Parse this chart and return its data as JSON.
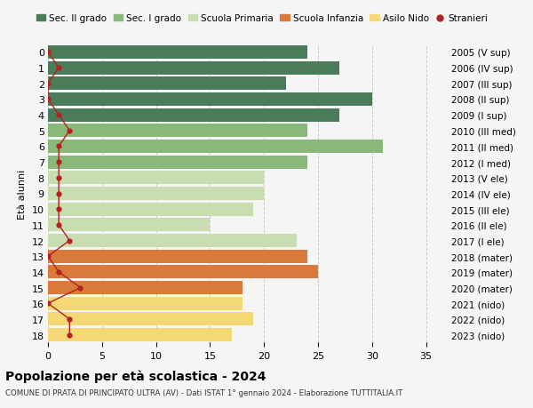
{
  "ages": [
    18,
    17,
    16,
    15,
    14,
    13,
    12,
    11,
    10,
    9,
    8,
    7,
    6,
    5,
    4,
    3,
    2,
    1,
    0
  ],
  "right_labels": [
    "2005 (V sup)",
    "2006 (IV sup)",
    "2007 (III sup)",
    "2008 (II sup)",
    "2009 (I sup)",
    "2010 (III med)",
    "2011 (II med)",
    "2012 (I med)",
    "2013 (V ele)",
    "2014 (IV ele)",
    "2015 (III ele)",
    "2016 (II ele)",
    "2017 (I ele)",
    "2018 (mater)",
    "2019 (mater)",
    "2020 (mater)",
    "2021 (nido)",
    "2022 (nido)",
    "2023 (nido)"
  ],
  "bar_values": [
    24,
    27,
    22,
    30,
    27,
    24,
    31,
    24,
    20,
    20,
    19,
    15,
    23,
    24,
    25,
    18,
    18,
    19,
    17
  ],
  "bar_colors": [
    "#4a7c59",
    "#4a7c59",
    "#4a7c59",
    "#4a7c59",
    "#4a7c59",
    "#8ab87a",
    "#8ab87a",
    "#8ab87a",
    "#c8ddb0",
    "#c8ddb0",
    "#c8ddb0",
    "#c8ddb0",
    "#c8ddb0",
    "#d9793a",
    "#d9793a",
    "#d9793a",
    "#f5d876",
    "#f5d876",
    "#f5d876"
  ],
  "stranieri_x": [
    0,
    1,
    0,
    0,
    1,
    2,
    1,
    1,
    1,
    1,
    1,
    1,
    2,
    0,
    1,
    3,
    0,
    2,
    2
  ],
  "title": "Popolazione per età scolastica - 2024",
  "subtitle": "COMUNE DI PRATA DI PRINCIPATO ULTRA (AV) - Dati ISTAT 1° gennaio 2024 - Elaborazione TUTTITALIA.IT",
  "ylabel_left": "Età alunni",
  "xlim": [
    0,
    37
  ],
  "xticks": [
    0,
    5,
    10,
    15,
    20,
    25,
    30,
    35
  ],
  "colors": {
    "sec2": "#4a7c59",
    "sec1": "#8ab87a",
    "primaria": "#c8ddb0",
    "infanzia": "#d9793a",
    "nido": "#f5d876",
    "stranieri": "#b22222",
    "background": "#f5f5f5",
    "grid": "#cccccc"
  },
  "legend_labels": [
    "Sec. II grado",
    "Sec. I grado",
    "Scuola Primaria",
    "Scuola Infanzia",
    "Asilo Nido",
    "Stranieri"
  ]
}
